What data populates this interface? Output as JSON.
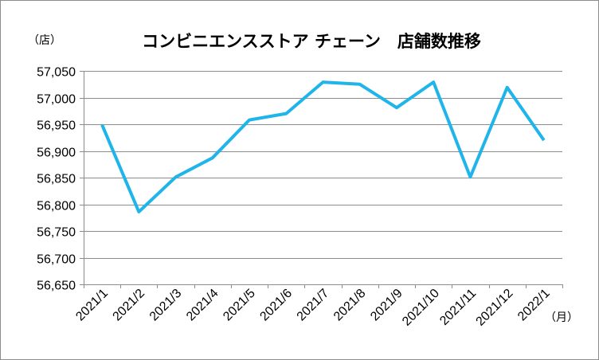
{
  "chart_data": {
    "type": "line",
    "title": "コンビニエンスストア チェーン　店舗数推移",
    "ylabel": "（店）",
    "xlabel": "（月）",
    "categories": [
      "2021/1",
      "2021/2",
      "2021/3",
      "2021/4",
      "2021/5",
      "2021/6",
      "2021/7",
      "2021/8",
      "2021/9",
      "2021/10",
      "2021/11",
      "2021/12",
      "2022/1"
    ],
    "series": [
      {
        "values": [
          56949,
          56786,
          56851,
          56887,
          56958,
          56970,
          57029,
          57025,
          56981,
          57029,
          56851,
          57019,
          56920
        ],
        "color": "#1fb4ea"
      }
    ],
    "ylim": [
      56650,
      57050
    ],
    "yticks": [
      56650,
      56700,
      56750,
      56800,
      56850,
      56900,
      56950,
      57000,
      57050
    ],
    "ytick_labels": [
      "56,650",
      "56,700",
      "56,750",
      "56,800",
      "56,850",
      "56,900",
      "56,950",
      "57,000",
      "57,050"
    ],
    "grid": true,
    "legend": false
  }
}
